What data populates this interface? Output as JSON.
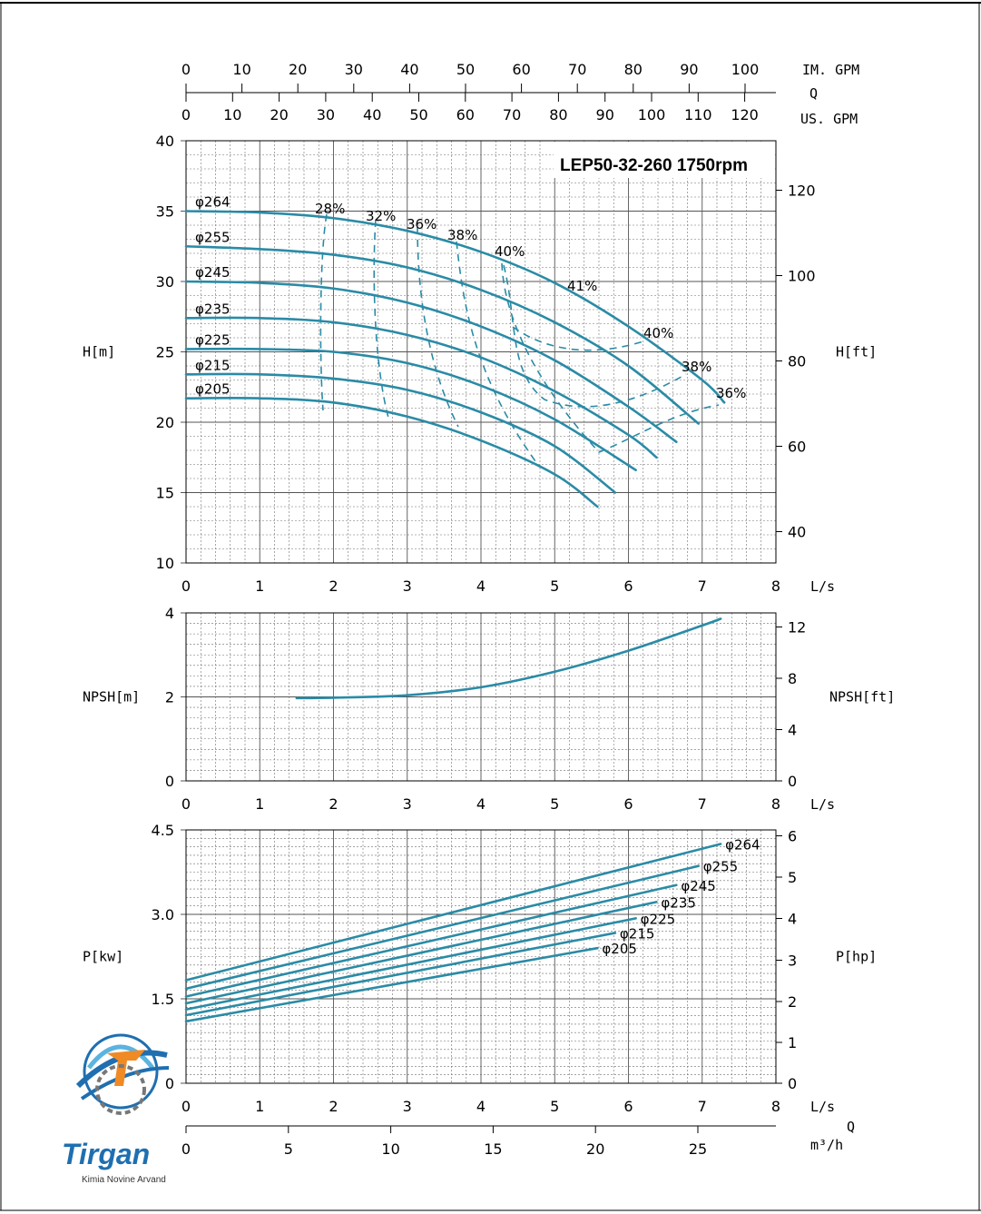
{
  "colors": {
    "curve": "#2a8ba6",
    "grid": "#555555",
    "logo_blue": "#1f6fb0",
    "logo_orange": "#f08a24"
  },
  "logo": {
    "name": "Tirgan",
    "tagline": "Kimia Novine Arvand"
  },
  "top_axes": {
    "im_label": "IM. GPM",
    "q_label": "Q",
    "us_label": "US. GPM",
    "im_ticks": [
      "0",
      "10",
      "20",
      "30",
      "40",
      "50",
      "60",
      "70",
      "80",
      "90",
      "100"
    ],
    "us_ticks": [
      "0",
      "10",
      "20",
      "30",
      "40",
      "50",
      "60",
      "70",
      "80",
      "90",
      "100",
      "110",
      "120"
    ]
  },
  "bottom_axis": {
    "q_label": "Q",
    "unit": "m³/h",
    "ticks": [
      "0",
      "5",
      "10",
      "15",
      "20",
      "25"
    ]
  },
  "chart_data": [
    {
      "type": "line",
      "title": "LEP50-32-260 1750rpm",
      "xlabel": "L/s",
      "ylabel": "H[m]",
      "y2label": "H[ft]",
      "xlim": [
        0,
        8
      ],
      "ylim": [
        10,
        40
      ],
      "y2ticks": [
        "40",
        "60",
        "80",
        "100",
        "120"
      ],
      "x_ticks": [
        "0",
        "1",
        "2",
        "3",
        "4",
        "5",
        "6",
        "7",
        "8"
      ],
      "y_ticks": [
        "10",
        "15",
        "20",
        "25",
        "30",
        "35",
        "40"
      ],
      "series": [
        {
          "name": "φ264",
          "x": [
            0,
            1,
            2,
            3,
            4,
            5,
            6,
            7,
            7.3
          ],
          "y": [
            35.0,
            34.9,
            34.5,
            33.6,
            32.1,
            29.9,
            26.8,
            23.0,
            21.4
          ]
        },
        {
          "name": "φ255",
          "x": [
            0,
            1,
            2,
            3,
            4,
            5,
            6,
            6.95
          ],
          "y": [
            32.5,
            32.3,
            31.9,
            31.0,
            29.4,
            27.1,
            24.0,
            19.9
          ]
        },
        {
          "name": "φ245",
          "x": [
            0,
            1,
            2,
            3,
            4,
            5,
            6,
            6.65
          ],
          "y": [
            30.0,
            29.9,
            29.5,
            28.5,
            26.8,
            24.4,
            21.1,
            18.6
          ]
        },
        {
          "name": "φ235",
          "x": [
            0,
            1,
            2,
            3,
            4,
            5,
            6,
            6.38
          ],
          "y": [
            27.4,
            27.4,
            27.1,
            26.2,
            24.6,
            22.2,
            19.1,
            17.5
          ]
        },
        {
          "name": "φ225",
          "x": [
            0,
            1,
            2,
            3,
            4,
            5,
            6.1
          ],
          "y": [
            25.2,
            25.2,
            25.0,
            24.2,
            22.6,
            20.2,
            16.6
          ]
        },
        {
          "name": "φ215",
          "x": [
            0,
            1,
            2,
            3,
            4,
            5,
            5.82
          ],
          "y": [
            23.4,
            23.4,
            23.1,
            22.3,
            20.7,
            18.3,
            15.0
          ]
        },
        {
          "name": "φ205",
          "x": [
            0,
            1,
            2,
            3,
            4,
            5,
            5.58
          ],
          "y": [
            21.7,
            21.7,
            21.4,
            20.4,
            18.7,
            16.3,
            14.0
          ]
        }
      ],
      "efficiency_labels": [
        "28%",
        "32%",
        "36%",
        "38%",
        "40%",
        "41%",
        "40%",
        "38%",
        "36%"
      ]
    },
    {
      "type": "line",
      "xlabel": "L/s",
      "ylabel": "NPSH[m]",
      "y2label": "NPSH[ft]",
      "xlim": [
        0,
        8
      ],
      "ylim": [
        0,
        4
      ],
      "x_ticks": [
        "0",
        "1",
        "2",
        "3",
        "4",
        "5",
        "6",
        "7",
        "8"
      ],
      "y_ticks": [
        "0",
        "2",
        "4"
      ],
      "y2ticks": [
        "0",
        "4",
        "8",
        "12"
      ],
      "series": [
        {
          "x": [
            1.5,
            2,
            3,
            4,
            5,
            6,
            7,
            7.25
          ],
          "y": [
            1.97,
            1.98,
            2.04,
            2.23,
            2.6,
            3.1,
            3.7,
            3.86
          ]
        }
      ]
    },
    {
      "type": "line",
      "xlabel": "L/s",
      "ylabel": "P[kw]",
      "y2label": "P[hp]",
      "xlim": [
        0,
        8
      ],
      "ylim": [
        0,
        4.5
      ],
      "x_ticks": [
        "0",
        "1",
        "2",
        "3",
        "4",
        "5",
        "6",
        "7",
        "8"
      ],
      "y_ticks": [
        "0",
        "1.5",
        "3.0",
        "4.5"
      ],
      "y2ticks": [
        "0",
        "1",
        "2",
        "3",
        "4",
        "5",
        "6"
      ],
      "series": [
        {
          "name": "φ264",
          "x": [
            0,
            7.25
          ],
          "y": [
            1.83,
            4.25
          ]
        },
        {
          "name": "φ255",
          "x": [
            0,
            6.95
          ],
          "y": [
            1.68,
            3.86
          ]
        },
        {
          "name": "φ245",
          "x": [
            0,
            6.65
          ],
          "y": [
            1.54,
            3.52
          ]
        },
        {
          "name": "φ235",
          "x": [
            0,
            6.38
          ],
          "y": [
            1.42,
            3.22
          ]
        },
        {
          "name": "φ225",
          "x": [
            0,
            6.1
          ],
          "y": [
            1.31,
            2.93
          ]
        },
        {
          "name": "φ215",
          "x": [
            0,
            5.82
          ],
          "y": [
            1.21,
            2.67
          ]
        },
        {
          "name": "φ205",
          "x": [
            0,
            5.58
          ],
          "y": [
            1.1,
            2.4
          ]
        }
      ]
    }
  ]
}
